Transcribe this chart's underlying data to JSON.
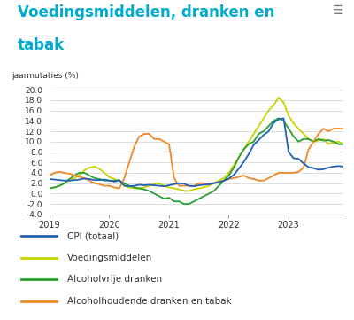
{
  "title_line1": "Voedingsmiddelen, dranken en",
  "title_line2": "tabak",
  "title_color": "#00aacc",
  "ylabel": "jaarmutaties (%)",
  "background_color": "#ffffff",
  "plot_bg_color": "#ffffff",
  "ylim": [
    -4.0,
    20.0
  ],
  "yticks": [
    -4.0,
    -2.0,
    0.0,
    2.0,
    4.0,
    6.0,
    8.0,
    10.0,
    12.0,
    14.0,
    16.0,
    18.0,
    20.0
  ],
  "legend": [
    "CPI (totaal)",
    "Voedingsmiddelen",
    "Alcoholvrije dranken",
    "Alcoholhoudende dranken en tabak"
  ],
  "colors": {
    "cpi": "#2060b8",
    "voeding": "#c8d400",
    "alcoholvrij": "#28a030",
    "alcoholhoudend": "#f08828"
  },
  "cpi": [
    2.8,
    2.7,
    2.6,
    2.5,
    2.5,
    2.6,
    2.7,
    2.9,
    2.8,
    2.6,
    2.6,
    2.7,
    2.5,
    2.3,
    2.6,
    1.5,
    1.4,
    1.5,
    1.7,
    1.6,
    1.7,
    1.6,
    1.5,
    1.4,
    1.6,
    1.8,
    2.0,
    1.9,
    1.5,
    1.4,
    1.6,
    1.7,
    1.8,
    2.0,
    2.2,
    2.5,
    2.9,
    3.6,
    4.8,
    6.1,
    7.6,
    9.4,
    10.3,
    11.3,
    12.0,
    13.6,
    14.3,
    14.5,
    8.0,
    6.8,
    6.7,
    5.8,
    5.1,
    4.9,
    4.6,
    4.7,
    5.0,
    5.2,
    5.3,
    5.2
  ],
  "voeding": [
    1.0,
    1.2,
    1.5,
    2.0,
    2.5,
    3.0,
    3.5,
    4.5,
    5.0,
    5.2,
    4.8,
    4.0,
    3.2,
    2.8,
    2.5,
    1.5,
    1.2,
    1.0,
    1.0,
    1.2,
    1.5,
    1.8,
    2.0,
    1.5,
    1.2,
    1.0,
    0.8,
    0.5,
    0.5,
    0.8,
    1.0,
    1.2,
    1.5,
    2.0,
    2.5,
    3.0,
    4.0,
    5.5,
    7.0,
    8.5,
    10.0,
    11.5,
    13.0,
    14.5,
    16.0,
    17.0,
    18.5,
    17.5,
    15.0,
    13.5,
    12.5,
    11.5,
    10.5,
    10.0,
    10.2,
    10.5,
    9.5,
    9.8,
    10.0,
    9.5
  ],
  "alcoholvrij": [
    1.0,
    1.2,
    1.5,
    2.0,
    2.8,
    3.5,
    4.0,
    4.0,
    3.5,
    3.0,
    2.8,
    2.5,
    2.5,
    2.5,
    2.5,
    2.0,
    1.5,
    1.2,
    1.0,
    0.8,
    0.5,
    0.0,
    -0.5,
    -1.0,
    -0.8,
    -1.5,
    -1.5,
    -2.0,
    -2.0,
    -1.5,
    -1.0,
    -0.5,
    0.0,
    0.5,
    1.5,
    2.5,
    3.5,
    5.0,
    7.0,
    8.5,
    9.5,
    10.0,
    11.5,
    12.0,
    13.0,
    14.0,
    14.5,
    14.0,
    12.5,
    11.0,
    10.0,
    10.5,
    10.5,
    10.0,
    10.5,
    10.2,
    10.3,
    10.0,
    9.5,
    9.5
  ],
  "alcoholhoudend": [
    3.5,
    4.0,
    4.2,
    4.0,
    3.8,
    3.5,
    3.2,
    3.0,
    2.5,
    2.0,
    1.8,
    1.5,
    1.5,
    1.2,
    1.0,
    3.0,
    6.0,
    9.0,
    11.0,
    11.5,
    11.5,
    10.5,
    10.5,
    10.0,
    9.5,
    3.0,
    1.5,
    1.5,
    1.5,
    1.5,
    2.0,
    2.0,
    1.8,
    2.0,
    2.2,
    2.5,
    2.8,
    3.0,
    3.2,
    3.5,
    3.0,
    2.8,
    2.5,
    2.5,
    3.0,
    3.5,
    4.0,
    4.0,
    4.0,
    4.0,
    4.2,
    5.0,
    8.5,
    10.0,
    11.5,
    12.5,
    12.0,
    12.5,
    12.5,
    12.5
  ]
}
